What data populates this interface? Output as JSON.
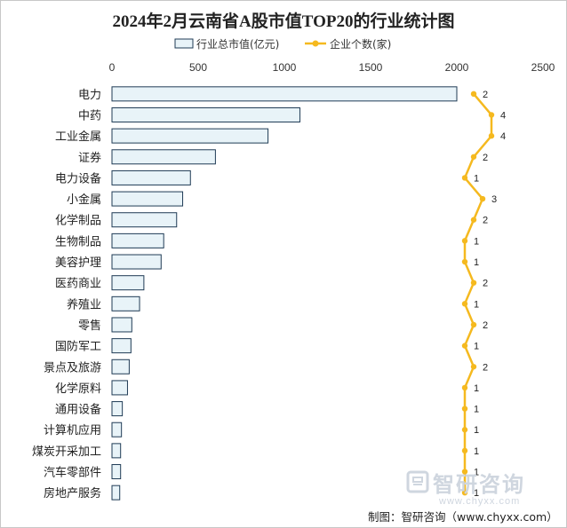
{
  "chart_data": {
    "type": "bar",
    "title": "2024年2月云南省A股市值TOP20的行业统计图",
    "categories": [
      "电力",
      "中药",
      "工业金属",
      "证券",
      "电力设备",
      "小金属",
      "化学制品",
      "生物制品",
      "美容护理",
      "医药商业",
      "养殖业",
      "零售",
      "国防军工",
      "景点及旅游",
      "化学原料",
      "通用设备",
      "计算机应用",
      "煤炭开采加工",
      "汽车零部件",
      "房地产服务"
    ],
    "series": [
      {
        "name": "行业总市值(亿元)",
        "type": "bar",
        "values": [
          2000,
          1090,
          905,
          600,
          455,
          410,
          375,
          300,
          285,
          185,
          160,
          115,
          110,
          100,
          90,
          60,
          55,
          50,
          50,
          45
        ]
      },
      {
        "name": "企业个数(家)",
        "type": "line",
        "values": [
          2,
          4,
          4,
          2,
          1,
          3,
          2,
          1,
          1,
          2,
          1,
          2,
          1,
          2,
          1,
          1,
          1,
          1,
          1,
          1
        ]
      }
    ],
    "x_ticks": [
      0,
      500,
      1000,
      1500,
      2000,
      2500
    ],
    "xlim": [
      0,
      2500
    ],
    "legend_position": "top-center",
    "bar_color": "#e8f3f8",
    "bar_border": "#1f3b55",
    "line_color": "#f5b91f"
  },
  "footer": {
    "source": "制图：智研咨询（www.chyxx.com）"
  },
  "watermark": {
    "brand": "智研咨询",
    "url": "www.chyxx.com"
  }
}
